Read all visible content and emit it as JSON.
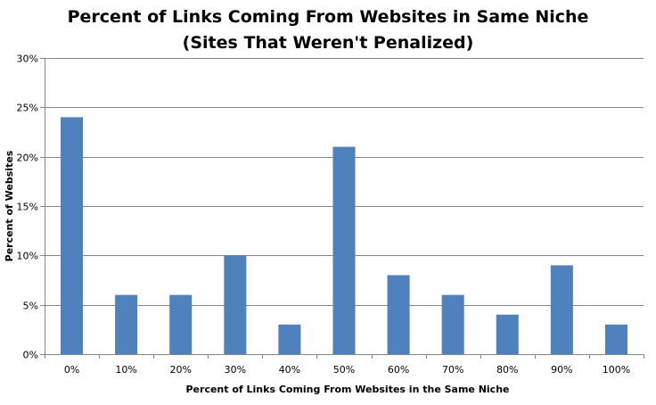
{
  "chart_data": {
    "type": "bar",
    "title": "Percent of Links Coming From Websites in Same Niche",
    "subtitle": "(Sites That Weren't Penalized)",
    "xlabel": "Percent of Links Coming From Websites in the Same Niche",
    "ylabel": "Percent of Websites",
    "categories": [
      "0%",
      "10%",
      "20%",
      "30%",
      "40%",
      "50%",
      "60%",
      "70%",
      "80%",
      "90%",
      "100%"
    ],
    "values": [
      24,
      6,
      6,
      10,
      3,
      21,
      8,
      6,
      4,
      9,
      3
    ],
    "ylim": [
      0,
      30
    ],
    "yticks": [
      0,
      5,
      10,
      15,
      20,
      25,
      30
    ],
    "ytick_labels": [
      "0%",
      "5%",
      "10%",
      "15%",
      "20%",
      "25%",
      "30%"
    ],
    "grid": true,
    "legend": "none",
    "colors": {
      "bar": "#4F81BD",
      "grid": "#868686",
      "axis": "#868686"
    }
  }
}
